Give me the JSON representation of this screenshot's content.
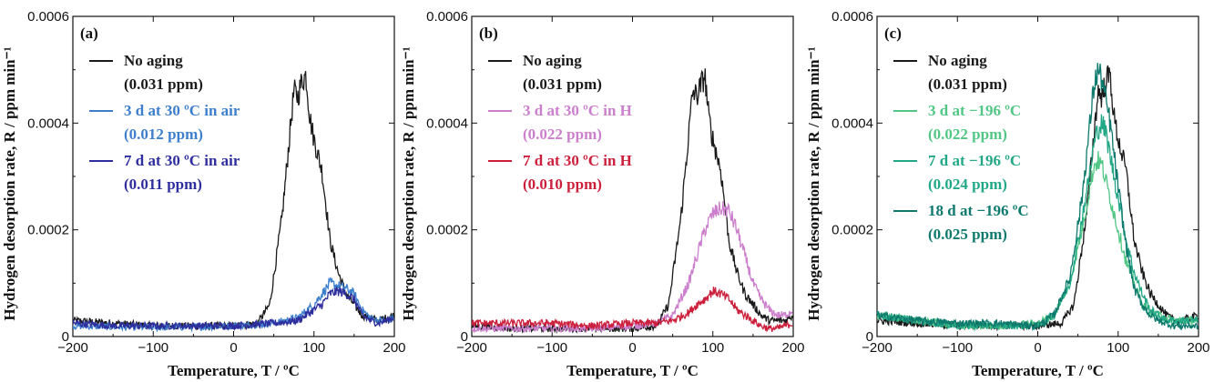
{
  "chart_data": [
    {
      "type": "line",
      "panel_label": "(a)",
      "xlabel": "Temperature, T / ºC",
      "ylabel": "Hydrogen desorption rate, R / ppm min⁻¹",
      "xlim": [
        -200,
        200
      ],
      "ylim": [
        0,
        0.0006
      ],
      "xticks": [
        "−200",
        "−100",
        "0",
        "100",
        "200"
      ],
      "yticks": [
        "0",
        "0.0002",
        "0.0004",
        "0.0006"
      ],
      "series": [
        {
          "name": "No aging",
          "sub": "(0.031 ppm)",
          "color": "#1a1a1a",
          "x": [
            -200,
            -150,
            -100,
            -50,
            0,
            30,
            45,
            60,
            70,
            75,
            80,
            85,
            90,
            95,
            100,
            110,
            120,
            130,
            140,
            150,
            160,
            170,
            180,
            190,
            200
          ],
          "y": [
            3e-05,
            2.5e-05,
            2e-05,
            2e-05,
            2e-05,
            2.5e-05,
            6e-05,
            0.00022,
            0.00038,
            0.00046,
            0.00045,
            0.00048,
            0.00049,
            0.00041,
            0.00037,
            0.00031,
            0.00018,
            0.00012,
            8e-05,
            6e-05,
            4e-05,
            3.5e-05,
            3e-05,
            3.5e-05,
            4e-05
          ]
        },
        {
          "name": "3 d at 30 ºC in air",
          "sub": "(0.012 ppm)",
          "color": "#3d7fcc",
          "x": [
            -200,
            -150,
            -100,
            -50,
            0,
            50,
            80,
            100,
            110,
            120,
            130,
            140,
            150,
            160,
            170,
            180,
            190,
            200
          ],
          "y": [
            2e-05,
            1.8e-05,
            1.7e-05,
            1.8e-05,
            2e-05,
            2.5e-05,
            3.5e-05,
            6e-05,
            8e-05,
            0.0001,
            9.5e-05,
            9e-05,
            8e-05,
            5e-05,
            3.5e-05,
            3e-05,
            3e-05,
            3.5e-05
          ]
        },
        {
          "name": "7 d at 30 ºC in air",
          "sub": "(0.011 ppm)",
          "color": "#2e2e9e",
          "x": [
            -200,
            -150,
            -100,
            -50,
            0,
            50,
            80,
            100,
            110,
            120,
            130,
            140,
            150,
            160,
            170,
            180,
            190,
            200
          ],
          "y": [
            2.5e-05,
            2e-05,
            2e-05,
            2e-05,
            2e-05,
            2.5e-05,
            3e-05,
            5e-05,
            6e-05,
            8e-05,
            8.5e-05,
            8e-05,
            7e-05,
            4e-05,
            3e-05,
            2.5e-05,
            3e-05,
            3.5e-05
          ]
        }
      ]
    },
    {
      "type": "line",
      "panel_label": "(b)",
      "xlabel": "Temperature, T / ºC",
      "ylabel": "Hydrogen desorption rate, R / ppm min⁻¹",
      "xlim": [
        -200,
        200
      ],
      "ylim": [
        0,
        0.0006
      ],
      "xticks": [
        "−200",
        "−100",
        "0",
        "100",
        "200"
      ],
      "yticks": [
        "0",
        "0.0002",
        "0.0004",
        "0.0006"
      ],
      "series": [
        {
          "name": "No aging",
          "sub": "(0.031 ppm)",
          "color": "#1a1a1a",
          "x": [
            -200,
            -150,
            -100,
            -50,
            0,
            30,
            45,
            60,
            70,
            75,
            80,
            85,
            90,
            95,
            100,
            110,
            120,
            130,
            140,
            150,
            160,
            170,
            180,
            190,
            200
          ],
          "y": [
            2e-05,
            1.5e-05,
            1.5e-05,
            1.5e-05,
            1.5e-05,
            2e-05,
            6e-05,
            0.00022,
            0.00038,
            0.00046,
            0.00045,
            0.00047,
            0.00049,
            0.00041,
            0.00037,
            0.00031,
            0.00018,
            0.00012,
            8e-05,
            6e-05,
            4e-05,
            3e-05,
            3e-05,
            3e-05,
            4e-05
          ]
        },
        {
          "name": "3 d at 30 ºC in H",
          "sub": "(0.022 ppm)",
          "color": "#cc7fcc",
          "x": [
            -200,
            -150,
            -100,
            -50,
            0,
            30,
            50,
            70,
            80,
            90,
            100,
            110,
            120,
            130,
            140,
            150,
            160,
            170,
            180,
            190,
            200
          ],
          "y": [
            1.5e-05,
            1.5e-05,
            1.5e-05,
            1.5e-05,
            2e-05,
            2.5e-05,
            4e-05,
            0.0001,
            0.00015,
            0.0002,
            0.00023,
            0.00024,
            0.000235,
            0.0002,
            0.00015,
            0.0001,
            7e-05,
            5e-05,
            4e-05,
            4e-05,
            5e-05
          ]
        },
        {
          "name": "7 d at 30 ºC in H",
          "sub": "(0.010 ppm)",
          "color": "#cc1f3c",
          "x": [
            -200,
            -150,
            -100,
            -50,
            0,
            30,
            50,
            70,
            80,
            90,
            100,
            110,
            120,
            130,
            140,
            150,
            160,
            170,
            180,
            190,
            200
          ],
          "y": [
            2.5e-05,
            2.5e-05,
            2.5e-05,
            2e-05,
            2.5e-05,
            2.5e-05,
            3e-05,
            4.5e-05,
            6e-05,
            7e-05,
            8.5e-05,
            8e-05,
            7e-05,
            5e-05,
            4e-05,
            3e-05,
            2e-05,
            1.5e-05,
            1.5e-05,
            2e-05,
            2.5e-05
          ]
        }
      ]
    },
    {
      "type": "line",
      "panel_label": "(c)",
      "xlabel": "Temperature, T / ºC",
      "ylabel": "Hydrogen desorption rate, R / ppm min⁻¹",
      "xlim": [
        -200,
        200
      ],
      "ylim": [
        0,
        0.0006
      ],
      "xticks": [
        "−200",
        "−100",
        "0",
        "100",
        "200"
      ],
      "yticks": [
        "0",
        "0.0002",
        "0.0004",
        "0.0006"
      ],
      "series": [
        {
          "name": "No aging",
          "sub": "(0.031 ppm)",
          "color": "#1a1a1a",
          "x": [
            -200,
            -150,
            -100,
            -50,
            0,
            30,
            45,
            60,
            70,
            75,
            80,
            85,
            90,
            95,
            100,
            110,
            120,
            130,
            140,
            150,
            160,
            170,
            180,
            190,
            200
          ],
          "y": [
            3e-05,
            2.5e-05,
            2e-05,
            2e-05,
            2e-05,
            2.5e-05,
            6e-05,
            0.00022,
            0.00038,
            0.00046,
            0.00045,
            0.00048,
            0.00049,
            0.00041,
            0.00037,
            0.00031,
            0.00018,
            0.00012,
            8e-05,
            6e-05,
            4e-05,
            3e-05,
            3e-05,
            3.5e-05,
            4e-05
          ]
        },
        {
          "name": "3 d at −196 ºC",
          "sub": "(0.022 ppm)",
          "color": "#52c785",
          "x": [
            -200,
            -150,
            -100,
            -50,
            0,
            20,
            40,
            55,
            65,
            70,
            75,
            80,
            90,
            100,
            110,
            120,
            130,
            140,
            150,
            160,
            170,
            180,
            190,
            200
          ],
          "y": [
            4e-05,
            3e-05,
            2e-05,
            2e-05,
            2.5e-05,
            4e-05,
            0.0001,
            0.0002,
            0.00028,
            0.00032,
            0.00033,
            0.00032,
            0.00026,
            0.0002,
            0.00014,
            0.0001,
            6e-05,
            4.5e-05,
            4e-05,
            3.5e-05,
            3e-05,
            3e-05,
            3e-05,
            3e-05
          ]
        },
        {
          "name": "7 d at −196 ºC",
          "sub": "(0.024 ppm)",
          "color": "#22a886",
          "x": [
            -200,
            -150,
            -100,
            -50,
            0,
            20,
            40,
            55,
            65,
            70,
            75,
            80,
            85,
            90,
            100,
            110,
            120,
            130,
            140,
            150,
            160,
            170,
            180,
            190,
            200
          ],
          "y": [
            4e-05,
            3e-05,
            2e-05,
            2e-05,
            2e-05,
            4e-05,
            0.0001,
            0.00022,
            0.00031,
            0.00036,
            0.00039,
            0.0004,
            0.00038,
            0.00034,
            0.00026,
            0.00018,
            0.00012,
            8e-05,
            5e-05,
            4e-05,
            3e-05,
            3e-05,
            3e-05,
            3e-05,
            3e-05
          ]
        },
        {
          "name": "18 d at −196 ºC",
          "sub": "(0.025 ppm)",
          "color": "#0e7a6e",
          "x": [
            -200,
            -150,
            -100,
            -50,
            0,
            20,
            40,
            55,
            65,
            70,
            75,
            80,
            85,
            90,
            100,
            110,
            120,
            130,
            140,
            150,
            160,
            170,
            180,
            190,
            200
          ],
          "y": [
            4e-05,
            3e-05,
            2.5e-05,
            2.5e-05,
            2e-05,
            4e-05,
            0.00011,
            0.00026,
            0.0004,
            0.00047,
            0.0005,
            0.00048,
            0.00044,
            0.0004,
            0.00028,
            0.00017,
            9e-05,
            6e-05,
            4e-05,
            3e-05,
            2.5e-05,
            2e-05,
            2e-05,
            2e-05,
            2e-05
          ]
        }
      ]
    }
  ]
}
